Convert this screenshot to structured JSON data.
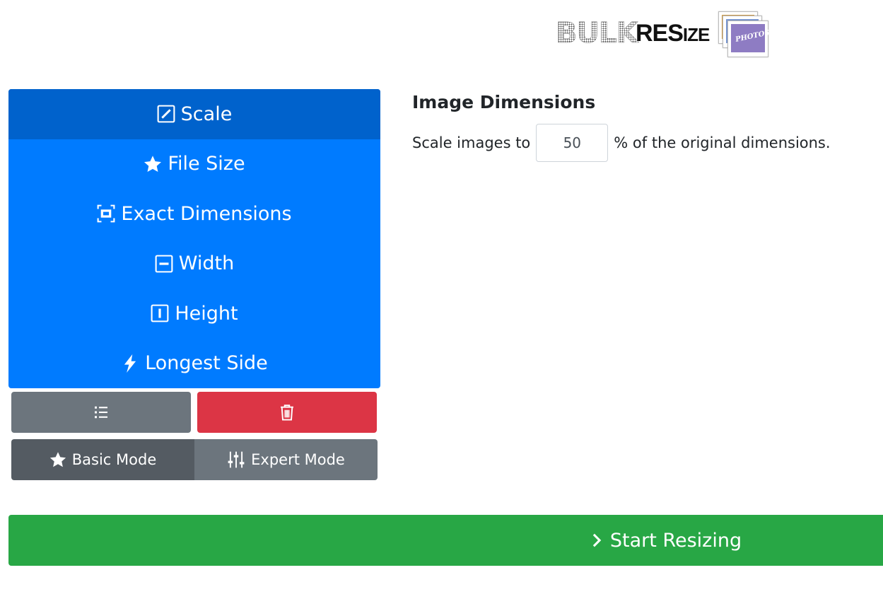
{
  "logo": {
    "bulk": "BULK",
    "resize_big": "RES",
    "resize_small": "IZE",
    "photos": "PHOTOS"
  },
  "menu": {
    "items": [
      {
        "label": "Scale",
        "icon": "pencil-square-icon",
        "active": true
      },
      {
        "label": "File Size",
        "icon": "star-icon"
      },
      {
        "label": "Exact Dimensions",
        "icon": "bounding-box-icon"
      },
      {
        "label": "Width",
        "icon": "dash-square-icon"
      },
      {
        "label": "Height",
        "icon": "bar-square-icon"
      },
      {
        "label": "Longest Side",
        "icon": "lightning-icon"
      }
    ]
  },
  "actions": {
    "list_icon": "list-icon",
    "delete_icon": "trash-icon"
  },
  "modes": {
    "basic": "Basic Mode",
    "expert": "Expert Mode",
    "active": "basic"
  },
  "main": {
    "title": "Image Dimensions",
    "prefix": "Scale images to",
    "value": "50",
    "suffix": "% of the original dimensions."
  },
  "start": {
    "label": "Start Resizing"
  },
  "colors": {
    "primary": "#007bff",
    "primary_active": "#0062cc",
    "secondary": "#6c757d",
    "danger": "#dc3545",
    "success": "#28a745"
  }
}
